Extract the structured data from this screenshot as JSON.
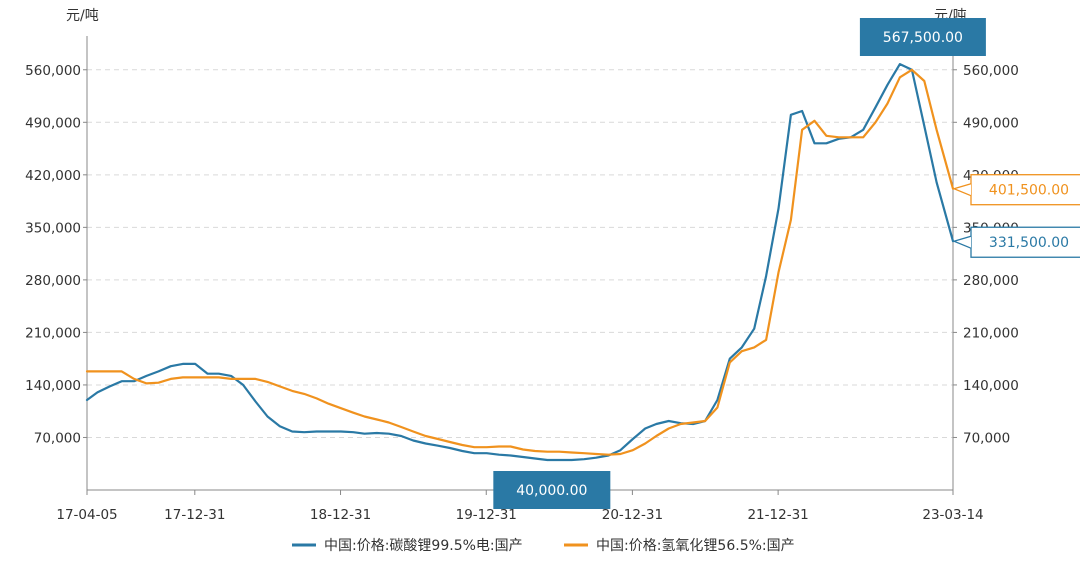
{
  "chart_data": {
    "type": "line",
    "y_unit_left": "元/吨",
    "y_unit_right": "元/吨",
    "ylim": [
      0,
      605000
    ],
    "yticks": [
      70000,
      140000,
      210000,
      280000,
      350000,
      420000,
      490000,
      560000
    ],
    "ytick_labels": [
      "70,000",
      "140,000",
      "210,000",
      "280,000",
      "350,000",
      "420,000",
      "490,000",
      "560,000"
    ],
    "xlim": [
      "2017-04-05",
      "2023-03-14"
    ],
    "xticks": [
      "2017-04-05",
      "2017-12-31",
      "2018-12-31",
      "2019-12-31",
      "2020-12-31",
      "2021-12-31",
      "2023-03-14"
    ],
    "xtick_labels": [
      "17-04-05",
      "17-12-31",
      "18-12-31",
      "19-12-31",
      "20-12-31",
      "21-12-31",
      "23-03-14"
    ],
    "grid": "horizontal dashed",
    "legend_position": "bottom",
    "series": [
      {
        "name": "中国:价格:碳酸锂99.5%电:国产",
        "color": "#2a79a5",
        "x": [
          "2017-04-05",
          "2017-05-01",
          "2017-06-01",
          "2017-07-01",
          "2017-08-01",
          "2017-09-01",
          "2017-10-01",
          "2017-11-01",
          "2017-12-01",
          "2018-01-01",
          "2018-02-01",
          "2018-03-01",
          "2018-04-01",
          "2018-05-01",
          "2018-06-01",
          "2018-07-01",
          "2018-08-01",
          "2018-09-01",
          "2018-10-01",
          "2018-11-01",
          "2018-12-01",
          "2019-01-01",
          "2019-02-01",
          "2019-03-01",
          "2019-04-01",
          "2019-05-01",
          "2019-06-01",
          "2019-07-01",
          "2019-08-01",
          "2019-09-01",
          "2019-10-01",
          "2019-11-01",
          "2019-12-01",
          "2020-01-01",
          "2020-02-01",
          "2020-03-01",
          "2020-04-01",
          "2020-05-01",
          "2020-06-01",
          "2020-07-01",
          "2020-08-01",
          "2020-09-01",
          "2020-10-01",
          "2020-11-01",
          "2020-12-01",
          "2021-01-01",
          "2021-02-01",
          "2021-03-01",
          "2021-04-01",
          "2021-05-01",
          "2021-06-01",
          "2021-07-01",
          "2021-08-01",
          "2021-09-01",
          "2021-10-01",
          "2021-11-01",
          "2021-12-01",
          "2022-01-01",
          "2022-02-01",
          "2022-03-01",
          "2022-04-01",
          "2022-05-01",
          "2022-06-01",
          "2022-07-01",
          "2022-08-01",
          "2022-09-01",
          "2022-10-01",
          "2022-11-01",
          "2022-12-01",
          "2023-01-01",
          "2023-02-01",
          "2023-03-14"
        ],
        "values": [
          120000,
          130000,
          138000,
          145000,
          145000,
          152000,
          158000,
          165000,
          168000,
          168000,
          155000,
          155000,
          152000,
          140000,
          118000,
          98000,
          85000,
          78000,
          77000,
          78000,
          78000,
          78000,
          77000,
          75000,
          76000,
          75000,
          72000,
          66000,
          62000,
          59000,
          56000,
          52000,
          49000,
          49000,
          47000,
          46000,
          44000,
          42000,
          40000,
          40000,
          40000,
          41000,
          43000,
          46000,
          53000,
          68000,
          82000,
          88000,
          92000,
          89000,
          88000,
          92000,
          120000,
          175000,
          190000,
          215000,
          285000,
          375000,
          500000,
          505000,
          462000,
          462000,
          468000,
          470000,
          480000,
          510000,
          540000,
          567500,
          560000,
          485000,
          410000,
          331500
        ]
      },
      {
        "name": "中国:价格:氢氧化锂56.5%:国产",
        "color": "#f0921e",
        "x": [
          "2017-04-05",
          "2017-06-01",
          "2017-07-01",
          "2017-08-01",
          "2017-09-01",
          "2017-10-01",
          "2017-11-01",
          "2017-12-01",
          "2018-01-01",
          "2018-02-01",
          "2018-03-01",
          "2018-04-01",
          "2018-05-01",
          "2018-06-01",
          "2018-07-01",
          "2018-08-01",
          "2018-09-01",
          "2018-10-01",
          "2018-11-01",
          "2018-12-01",
          "2019-01-01",
          "2019-02-01",
          "2019-03-01",
          "2019-04-01",
          "2019-05-01",
          "2019-06-01",
          "2019-07-01",
          "2019-08-01",
          "2019-09-01",
          "2019-10-01",
          "2019-11-01",
          "2019-12-01",
          "2020-01-01",
          "2020-02-01",
          "2020-03-01",
          "2020-04-01",
          "2020-05-01",
          "2020-06-01",
          "2020-07-01",
          "2020-08-01",
          "2020-09-01",
          "2020-10-01",
          "2020-11-01",
          "2020-12-01",
          "2021-01-01",
          "2021-02-01",
          "2021-03-01",
          "2021-04-01",
          "2021-05-01",
          "2021-06-01",
          "2021-07-01",
          "2021-08-01",
          "2021-09-01",
          "2021-10-01",
          "2021-11-01",
          "2021-12-01",
          "2022-01-01",
          "2022-02-01",
          "2022-03-01",
          "2022-04-01",
          "2022-05-01",
          "2022-06-01",
          "2022-07-01",
          "2022-08-01",
          "2022-09-01",
          "2022-10-01",
          "2022-11-01",
          "2022-12-01",
          "2023-01-01",
          "2023-02-01",
          "2023-03-14"
        ],
        "values": [
          158000,
          158000,
          158000,
          148000,
          142000,
          143000,
          148000,
          150000,
          150000,
          150000,
          150000,
          148000,
          148000,
          148000,
          144000,
          138000,
          132000,
          128000,
          122000,
          115000,
          109000,
          103000,
          98000,
          94000,
          90000,
          84000,
          78000,
          72000,
          68000,
          64000,
          60000,
          57000,
          57000,
          58000,
          58000,
          54000,
          52000,
          51000,
          51000,
          50000,
          49000,
          48000,
          47000,
          48000,
          53000,
          62000,
          72000,
          82000,
          88000,
          90000,
          92000,
          110000,
          170000,
          185000,
          190000,
          200000,
          290000,
          360000,
          480000,
          492000,
          472000,
          470000,
          470000,
          470000,
          490000,
          515000,
          550000,
          560000,
          545000,
          480000,
          401500
        ]
      }
    ],
    "annotations": [
      {
        "label": "567,500.00",
        "series": 0,
        "x": "2022-11-01",
        "value": 567500,
        "style": "filled"
      },
      {
        "label": "40,000.00",
        "series": 0,
        "x": "2020-07-01",
        "value": 40000,
        "style": "filled"
      },
      {
        "label": "401,500.00",
        "series": 1,
        "x": "2023-03-14",
        "value": 401500,
        "style": "outline"
      },
      {
        "label": "331,500.00",
        "series": 0,
        "x": "2023-03-14",
        "value": 331500,
        "style": "outline"
      }
    ]
  }
}
